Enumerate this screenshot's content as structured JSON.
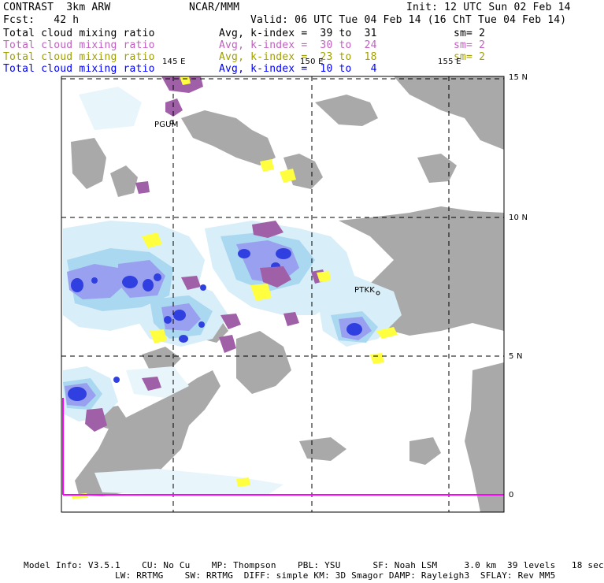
{
  "header": {
    "model": "CONTRAST  3km ARW",
    "center": "NCAR/MMM",
    "init": "Init: 12 UTC Sun 02 Feb 14",
    "fcst": "Fcst:   42 h",
    "valid": "Valid: 06 UTC Tue 04 Feb 14 (16 ChT Tue 04 Feb 14)"
  },
  "legend": [
    {
      "field": "Total cloud mixing ratio",
      "range": "Avg, k-index =  39 to  31",
      "sm": "sm= 2",
      "color": "#000000"
    },
    {
      "field": "Total cloud mixing ratio",
      "range": "Avg, k-index =  30 to  24",
      "sm": "sm= 2",
      "color": "#c060c0"
    },
    {
      "field": "Total cloud mixing ratio",
      "range": "Avg, k-index =  23 to  18",
      "sm": "sm= 2",
      "color": "#a0a000"
    },
    {
      "field": "Total cloud mixing ratio",
      "range": "Avg, k-index =  10 to   4",
      "sm": "",
      "color": "#0000ff"
    }
  ],
  "map": {
    "lon_labels": [
      "145 E",
      "150 E",
      "155 E"
    ],
    "lat_labels": [
      "15 N",
      "10 N",
      "5 N",
      "0"
    ],
    "stations": [
      "PGUM",
      "PTKK"
    ]
  },
  "footer": {
    "line1": "Model Info: V3.5.1    CU: No Cu    MP: Thompson    PBL: YSU      SF: Noah LSM     3.0 km  39 levels   18 sec",
    "line2": "                 LW: RRTMG    SW: RRTMG  DIFF: simple KM: 3D Smagor DAMP: Rayleigh3  SFLAY: Rev MM5"
  },
  "colors": {
    "land": "#a9a9a9",
    "cloud_light": "#d8eef8",
    "cloud_mid": "#aad8f0",
    "cloud_violet": "#9aa0f0",
    "cloud_blue": "#3040e0",
    "high_purple": "#a060a8",
    "high_yellow": "#ffff40",
    "boundary": "#ff00ff"
  }
}
